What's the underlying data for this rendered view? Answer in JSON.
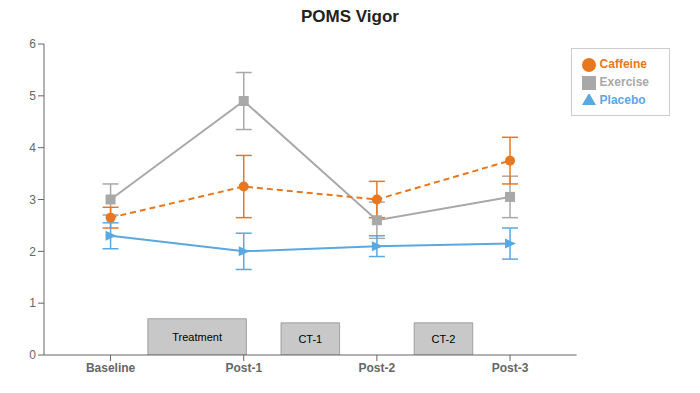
{
  "chart_data": {
    "type": "line",
    "title": "POMS Vigor",
    "categories": [
      "Baseline",
      "Post-1",
      "Post-2",
      "Post-3"
    ],
    "ylim": [
      0,
      6
    ],
    "yticks": [
      0,
      1,
      2,
      3,
      4,
      5,
      6
    ],
    "grid": false,
    "legend": "upper right",
    "series": [
      {
        "name": "Exercise",
        "color": "#A8A8A8",
        "line_style": "solid",
        "marker": "square",
        "values": [
          3.0,
          4.9,
          2.6,
          3.05
        ],
        "errors": [
          0.3,
          0.55,
          0.35,
          0.4
        ]
      },
      {
        "name": "Caffeine",
        "color": "#E87820",
        "line_style": "dashed",
        "marker": "circle",
        "values": [
          2.65,
          3.25,
          3.0,
          3.75
        ],
        "errors": [
          0.2,
          0.6,
          0.35,
          0.45
        ]
      },
      {
        "name": "Placebo",
        "color": "#5BA8E0",
        "line_style": "solid",
        "marker": "triangle",
        "values": [
          2.3,
          2.0,
          2.1,
          2.15
        ],
        "errors": [
          0.25,
          0.35,
          0.2,
          0.3
        ]
      }
    ],
    "annotations": [
      {
        "text": "Treatment",
        "x_start": 0.28,
        "x_end": 1.02,
        "y_top": 0.7
      },
      {
        "text": "CT-1",
        "x_start": 1.28,
        "x_end": 1.72,
        "y_top": 0.62
      },
      {
        "text": "CT-2",
        "x_start": 2.28,
        "x_end": 2.72,
        "y_top": 0.62
      }
    ]
  }
}
